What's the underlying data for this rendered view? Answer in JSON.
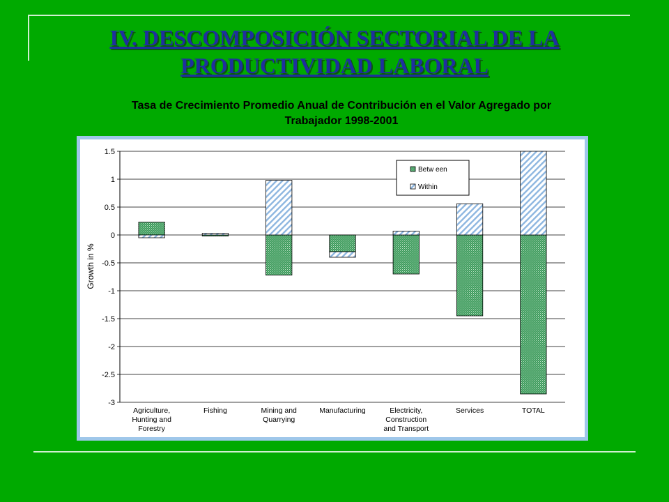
{
  "slide": {
    "title_line1": "IV. DESCOMPOSICIÓN SECTORIAL DE LA",
    "title_line2": "PRODUCTIVIDAD LABORAL",
    "subtitle_line1": "Tasa de Crecimiento Promedio Anual de Contribución en el Valor Agregado por",
    "subtitle_line2": "Trabajador 1998-2001"
  },
  "colors": {
    "background": "#00AA00",
    "title": "#1F2F9F",
    "between": "#3C9A5C",
    "within": "#8DB6E0"
  },
  "chart_data": {
    "type": "bar",
    "stacked": true,
    "categories": [
      [
        "Agriculture,",
        "Hunting  and",
        "Forestry"
      ],
      [
        "Fishing"
      ],
      [
        "Mining and",
        "Quarrying"
      ],
      [
        "Manufacturing"
      ],
      [
        "Electricity,",
        "Construction",
        "and Transport"
      ],
      [
        "Services"
      ],
      [
        "TOTAL"
      ]
    ],
    "series": [
      {
        "name": "Between",
        "values": [
          0.23,
          -0.02,
          -0.72,
          -0.3,
          -0.7,
          -1.45,
          -2.85
        ]
      },
      {
        "name": "Within",
        "values": [
          -0.05,
          0.03,
          0.98,
          -0.1,
          0.07,
          0.56,
          1.5
        ]
      }
    ],
    "ylabel": "Growth in %",
    "ylim": [
      -3,
      1.5
    ],
    "yticks": [
      "1.5",
      "1",
      "0.5",
      "0",
      "-0.5",
      "-1",
      "-1.5",
      "-2",
      "-2.5",
      "-3"
    ],
    "ytick_values": [
      1.5,
      1,
      0.5,
      0,
      -0.5,
      -1,
      -1.5,
      -2,
      -2.5,
      -3
    ],
    "legend": {
      "placement": "top-right",
      "labels": [
        "Betw een",
        "Within"
      ]
    },
    "grid": true
  }
}
